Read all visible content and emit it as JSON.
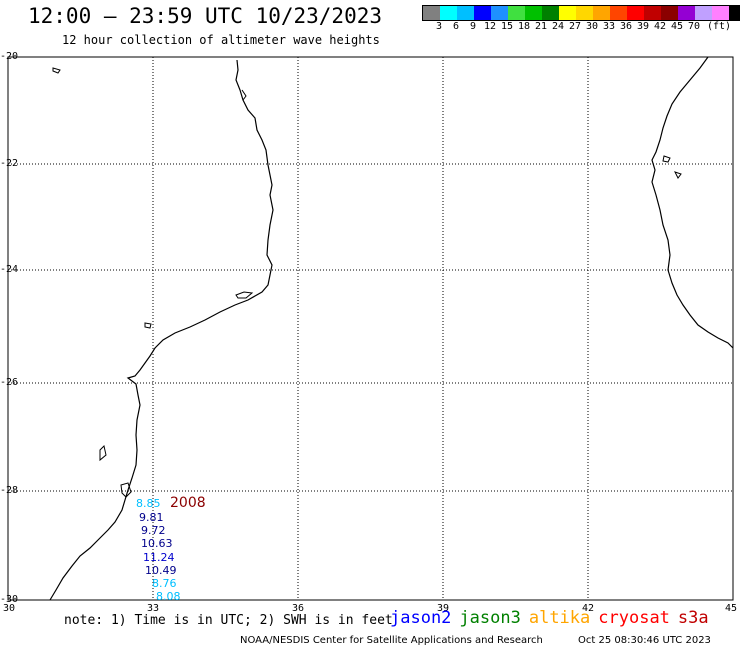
{
  "header": {
    "title": "12:00 – 23:59 UTC 10/23/2023",
    "subtitle": "12 hour collection of altimeter wave heights"
  },
  "colorbar": {
    "colors": [
      "#808080",
      "#00ffff",
      "#00bfff",
      "#0000ff",
      "#1e90ff",
      "#40e040",
      "#00c000",
      "#008000",
      "#ffff00",
      "#ffd700",
      "#ffa500",
      "#ff4500",
      "#ff0000",
      "#c00000",
      "#8b0000",
      "#9400d3",
      "#c0a0ff",
      "#ff80ff",
      "#000000"
    ],
    "labels": [
      "3",
      "6",
      "9",
      "12",
      "15",
      "18",
      "21",
      "24",
      "27",
      "30",
      "33",
      "36",
      "39",
      "42",
      "45",
      "70",
      "(ft)"
    ]
  },
  "map": {
    "lat_labels": [
      "-20",
      "-22",
      "-24",
      "-26",
      "-28",
      "-30"
    ],
    "lon_labels": [
      "30",
      "33",
      "36",
      "39",
      "42",
      "45"
    ],
    "track_label": "2008",
    "observations": [
      {
        "value": "8.85",
        "color": "#00bfff"
      },
      {
        "value": "9.81",
        "color": "#00008b"
      },
      {
        "value": "9.72",
        "color": "#00008b"
      },
      {
        "value": "10.63",
        "color": "#00008b"
      },
      {
        "value": "11.24",
        "color": "#0000cd"
      },
      {
        "value": "10.49",
        "color": "#00008b"
      },
      {
        "value": "8.76",
        "color": "#00bfff"
      },
      {
        "value": "8.08",
        "color": "#00bfff"
      }
    ]
  },
  "footer": {
    "note": "note: 1) Time is in UTC; 2) SWH is in feet",
    "satellites": [
      {
        "name": "jason2",
        "color": "#0000ff"
      },
      {
        "name": "jason3",
        "color": "#008000"
      },
      {
        "name": "altika",
        "color": "#ffa500"
      },
      {
        "name": "cryosat",
        "color": "#ff0000"
      },
      {
        "name": "s3a",
        "color": "#c00000"
      }
    ],
    "credit": "NOAA/NESDIS Center for Satellite Applications and Research",
    "timestamp": "Oct 25 08:30:46 UTC 2023"
  }
}
